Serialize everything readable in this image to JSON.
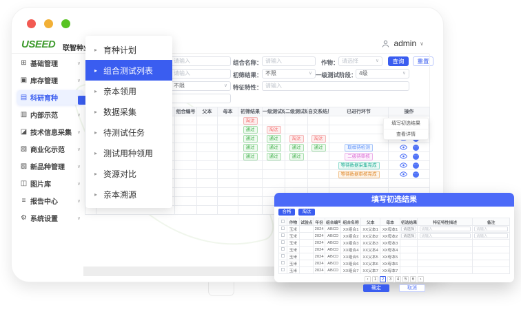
{
  "window": {
    "traffic_lights": [
      "#f25a52",
      "#f2b036",
      "#58c322"
    ]
  },
  "header": {
    "logo": "USEED",
    "brand": "联智种业产销一体化平台",
    "user": "admin",
    "user_icon": "person-icon",
    "chevron": "∨"
  },
  "sidebar": {
    "items": [
      {
        "icon": "grid-icon",
        "glyph": "⊞",
        "label": "基础管理",
        "active": false
      },
      {
        "icon": "inventory-icon",
        "glyph": "▣",
        "label": "库存管理",
        "active": false
      },
      {
        "icon": "monitor-icon",
        "glyph": "▤",
        "label": "科研育种",
        "active": true
      },
      {
        "icon": "demo-icon",
        "glyph": "▥",
        "label": "内部示范",
        "active": false
      },
      {
        "icon": "collect-icon",
        "glyph": "◪",
        "label": "技术信息采集",
        "active": false
      },
      {
        "icon": "commerce-icon",
        "glyph": "▧",
        "label": "商业化示范",
        "active": false
      },
      {
        "icon": "chart-icon",
        "glyph": "▨",
        "label": "新品种管理",
        "active": false
      },
      {
        "icon": "image-icon",
        "glyph": "◫",
        "label": "图片库",
        "active": false
      },
      {
        "icon": "report-icon",
        "glyph": "≡",
        "label": "报告中心",
        "active": false
      },
      {
        "icon": "gear-icon",
        "glyph": "⚙",
        "label": "系统设置",
        "active": false
      }
    ],
    "chevron": "∨"
  },
  "submenu": {
    "arrow": "▸",
    "items": [
      {
        "label": "育种计划",
        "active": false
      },
      {
        "label": "组合测试列表",
        "active": true
      },
      {
        "label": "亲本领用",
        "active": false
      },
      {
        "label": "数据采集",
        "active": false
      },
      {
        "label": "待测试任务",
        "active": false
      },
      {
        "label": "测试用种领用",
        "active": false
      },
      {
        "label": "资源对比",
        "active": false
      },
      {
        "label": "亲本溯源",
        "active": false
      }
    ]
  },
  "filters": {
    "f1": {
      "placeholder": "请输入"
    },
    "f2": {
      "label": "组合名称：",
      "placeholder": "请输入"
    },
    "f3": {
      "label": "作物：",
      "value": "请选择"
    },
    "f4": {
      "placeholder": "请输入"
    },
    "f5": {
      "label": "初筛结果：",
      "value": "不限"
    },
    "f6": {
      "label": "一级测试阶段：",
      "value": "4级"
    },
    "f7": {
      "value": "不限"
    },
    "f8": {
      "label": "特征特性：",
      "placeholder": "请输入"
    },
    "search": "查询",
    "reset": "重置",
    "batch": "批量填写初选结果"
  },
  "table": {
    "headers": [
      "",
      "组合名称",
      "组合编号",
      "父本",
      "母本",
      "初筛结果",
      "一级测试结果",
      "二级测试结果",
      "自交系结果",
      "已进行环节",
      "操作"
    ],
    "pass_text": "通过",
    "fail_text": "淘汰",
    "rows": [
      {
        "res": [
          "淘汰",
          "",
          "",
          ""
        ],
        "stage": "",
        "stage_color": "",
        "ops": true,
        "empty": false
      },
      {
        "res": [
          "通过",
          "淘汰",
          "",
          ""
        ],
        "stage": "",
        "stage_color": "",
        "ops": true,
        "empty": false
      },
      {
        "res": [
          "通过",
          "通过",
          "淘汰",
          "淘汰"
        ],
        "stage": "",
        "stage_color": "",
        "ops": true,
        "empty": false
      },
      {
        "res": [
          "通过",
          "通过",
          "通过",
          "通过"
        ],
        "stage": "取样待检测",
        "stage_color": "blue",
        "ops": true,
        "empty": false
      },
      {
        "res": [
          "通过",
          "通过",
          "通过",
          ""
        ],
        "stage": "二级待审核",
        "stage_color": "pink",
        "ops": true,
        "empty": false
      },
      {
        "res": [
          "",
          "",
          "",
          ""
        ],
        "stage": "等待数据采集完成",
        "stage_color": "teal",
        "ops": true,
        "empty": false
      },
      {
        "res": [
          "",
          "",
          "",
          ""
        ],
        "stage": "等待数据审核完成",
        "stage_color": "orange",
        "ops": true,
        "empty": false
      },
      {
        "res": [
          "",
          "",
          "",
          ""
        ],
        "stage": "",
        "stage_color": "",
        "ops": false,
        "empty": true
      },
      {
        "res": [
          "",
          "",
          "",
          ""
        ],
        "stage": "",
        "stage_color": "",
        "ops": false,
        "empty": true
      },
      {
        "res": [
          "",
          "",
          "",
          ""
        ],
        "stage": "",
        "stage_color": "",
        "ops": false,
        "empty": true
      },
      {
        "res": [
          "",
          "",
          "",
          ""
        ],
        "stage": "",
        "stage_color": "",
        "ops": false,
        "empty": true
      }
    ]
  },
  "row_menu": {
    "items": [
      "填写初选结果",
      "查看详情"
    ]
  },
  "modal": {
    "title": "填写初选结果",
    "bulk": [
      "合格",
      "淘汰"
    ],
    "headers": [
      "作物",
      "试验点",
      "年份",
      "组合编号",
      "组合名称",
      "父本",
      "母本",
      "初选结果",
      "特征特性描述",
      "备注"
    ],
    "select_placeholder": "请选择",
    "input_placeholder": "请输入",
    "rows": [
      {
        "crop": "玉米",
        "site": "",
        "year": "2024",
        "code": "ABCD",
        "name": "XX组合1",
        "father": "XX父本1",
        "mother": "XX母本1",
        "editable": true
      },
      {
        "crop": "玉米",
        "site": "",
        "year": "2024",
        "code": "ABCD",
        "name": "XX组合2",
        "father": "XX父本2",
        "mother": "XX母本2",
        "editable": true
      },
      {
        "crop": "玉米",
        "site": "",
        "year": "2024",
        "code": "ABCD",
        "name": "XX组合3",
        "father": "XX父本3",
        "mother": "XX母本3",
        "editable": false
      },
      {
        "crop": "玉米",
        "site": "",
        "year": "2024",
        "code": "ABCD",
        "name": "XX组合4",
        "father": "XX父本4",
        "mother": "XX母本4",
        "editable": false
      },
      {
        "crop": "玉米",
        "site": "",
        "year": "2024",
        "code": "ABCD",
        "name": "XX组合5",
        "father": "XX父本5",
        "mother": "XX母本5",
        "editable": false
      },
      {
        "crop": "玉米",
        "site": "",
        "year": "2024",
        "code": "ABCD",
        "name": "XX组合6",
        "father": "XX父本6",
        "mother": "XX母本6",
        "editable": false
      },
      {
        "crop": "玉米",
        "site": "",
        "year": "2024",
        "code": "ABCD",
        "name": "XX组合7",
        "father": "XX父本7",
        "mother": "XX母本7",
        "editable": false
      }
    ],
    "pagination": [
      "‹",
      "1",
      "2",
      "3",
      "4",
      "5",
      "6",
      "›"
    ],
    "active_page": "2",
    "ok": "确定",
    "cancel": "取消"
  },
  "colors": {
    "primary": "#3a5df0",
    "modal_header": "#4c6af8",
    "pass": "#3eb049",
    "fail": "#f56c6c"
  }
}
